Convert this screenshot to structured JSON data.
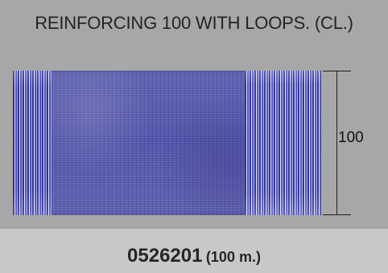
{
  "title": "REINFORCING 100 WITH LOOPS. (CL.)",
  "image": {
    "dimension_label": "100"
  },
  "product": {
    "code": "0526201",
    "length": "(100 m.)"
  }
}
